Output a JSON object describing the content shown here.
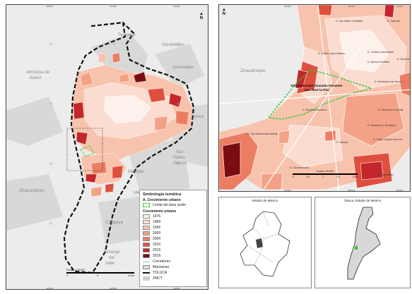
{
  "left_map": {
    "ticks_top": [
      "420000",
      "430000",
      "440000",
      "450000"
    ],
    "ticks_bottom": [
      "420000",
      "430000",
      "440000",
      "450000"
    ],
    "ticks_left": [
      "2150000",
      "2140000",
      "2130000",
      "2120000",
      "2110000"
    ],
    "municipalities": [
      "Temoaya",
      "Otzolotepec",
      "Almoloya de",
      "Juárez",
      "Xonacatlán",
      "Lerma",
      "San",
      "Mateo",
      "Atenco",
      "Metepec",
      "Zinacantepec",
      "Mexicaltzingo",
      "Calimaya",
      "Tenango",
      "del",
      "Valle"
    ],
    "scale": {
      "title": "Escala 1:130,000",
      "labels": [
        "0",
        "5",
        "10 km"
      ]
    }
  },
  "legend": {
    "title": "Simbología temática",
    "section_a": "A. Crecimiento urbano",
    "green_limit": "Límite del área verde",
    "growth_title": "Crecimiento urbano",
    "years": [
      {
        "label": "1976",
        "color": "#fdf1ec"
      },
      {
        "label": "1989",
        "color": "#fbdcd0"
      },
      {
        "label": "1996",
        "color": "#f8c3ad"
      },
      {
        "label": "2000",
        "color": "#f3a287"
      },
      {
        "label": "2004",
        "color": "#ec7d62"
      },
      {
        "label": "2010",
        "color": "#df4f3e"
      },
      {
        "label": "2015",
        "color": "#c4262b"
      },
      {
        "label": "2018",
        "color": "#7a0c14"
      }
    ],
    "other": [
      "Corredores",
      "Manzanas",
      "TOLUCA",
      "ZMCT"
    ]
  },
  "right_map": {
    "ticks_top": [
      "425000",
      "430000",
      "435000"
    ],
    "ticks_bottom": [
      "425000",
      "430000",
      "435000"
    ],
    "ticks_left": [
      "2135000",
      "2130000"
    ],
    "municipality": "Zinacantepec",
    "park_name": [
      "Parque Estatal Alameda Poniente",
      "San José la Pila"
    ],
    "colonies": [
      "D. San Mateo Oxtotitlán",
      "D. Sánchez",
      "S. Adolfo López Mateos",
      "D. Ciudad Universitaria",
      "D. Morelos",
      "D. Nueva Oxtotitlán",
      "D. Seminario Las Torres",
      "D. San Buenaventura",
      "D. Seminario Conciliar",
      "D. San Antonio Buenavista",
      "D. Seminario 2 de Marzo",
      "D. Tlacopa",
      "D. Felipe Chávez Becerril",
      "D. Cacalomacán",
      "D. Capultitlán"
    ],
    "scale": {
      "title": "Escala 1:20,000",
      "labels": [
        "0",
        "0.5",
        "1",
        "1.5",
        "2 km"
      ]
    }
  },
  "insets": {
    "state_title": "Estado de México",
    "toluca_title": "Toluca, Estado de México"
  },
  "colors": {
    "green_limit": "#2ecc2e",
    "boundary": "#111111",
    "background": "#ececec"
  }
}
